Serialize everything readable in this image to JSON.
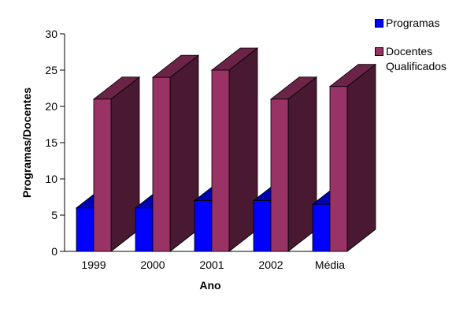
{
  "chart_data": {
    "type": "bar",
    "style": "3d-clustered",
    "categories": [
      "1999",
      "2000",
      "2001",
      "2002",
      "Média"
    ],
    "series": [
      {
        "name": "Programas",
        "values": [
          6,
          6,
          7,
          7,
          6.5
        ],
        "color": "#0000ff"
      },
      {
        "name": "Docentes Qualificados",
        "values": [
          21,
          24,
          25,
          21,
          22.75
        ],
        "color": "#993366"
      }
    ],
    "xlabel": "Ano",
    "ylabel": "Programas/Docentes",
    "ylim": [
      0,
      30
    ],
    "yticks": [
      0,
      5,
      10,
      15,
      20,
      25,
      30
    ],
    "grid": false,
    "legend_position": "right"
  },
  "legend": {
    "items": [
      {
        "label": "Programas",
        "color": "#0000ff"
      },
      {
        "label": "Docentes Qualificados",
        "color": "#993366"
      }
    ]
  }
}
